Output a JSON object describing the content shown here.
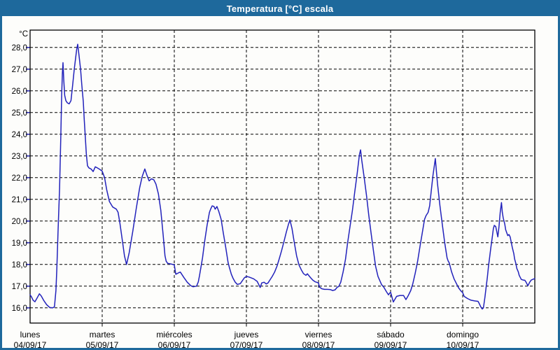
{
  "window": {
    "title": "Temperatura [°C] escala"
  },
  "colors": {
    "titlebar_bg": "#1e699c",
    "titlebar_text": "#ffffff",
    "window_border": "#1e699c",
    "plot_background": "#fdfdfb",
    "grid": "#000000",
    "series": "#2222bb"
  },
  "chart_data": {
    "type": "line",
    "title": "Temperatura [°C] escala",
    "grid": "dashed",
    "legend": "none",
    "y_axis": {
      "unit_label": "°C",
      "min": 16.0,
      "max": 28.0,
      "tick_step": 1.0,
      "display_min": 15.3,
      "display_max": 28.8,
      "ticks": [
        {
          "v": 28,
          "label": "28,0"
        },
        {
          "v": 27,
          "label": "27,0"
        },
        {
          "v": 26,
          "label": "26,0"
        },
        {
          "v": 25,
          "label": "25,0"
        },
        {
          "v": 24,
          "label": "24,0"
        },
        {
          "v": 23,
          "label": "23,0"
        },
        {
          "v": 22,
          "label": "22,0"
        },
        {
          "v": 21,
          "label": "21,0"
        },
        {
          "v": 20,
          "label": "20,0"
        },
        {
          "v": 19,
          "label": "19,0"
        },
        {
          "v": 18,
          "label": "18,0"
        },
        {
          "v": 17,
          "label": "17,0"
        },
        {
          "v": 16,
          "label": "16,0"
        }
      ]
    },
    "x_axis": {
      "hours_total": 168,
      "days": [
        {
          "name": "lunes",
          "date": "04/09/17"
        },
        {
          "name": "martes",
          "date": "05/09/17"
        },
        {
          "name": "miércoles",
          "date": "06/09/17"
        },
        {
          "name": "jueves",
          "date": "07/09/17"
        },
        {
          "name": "viernes",
          "date": "08/09/17"
        },
        {
          "name": "sábado",
          "date": "09/09/17"
        },
        {
          "name": "domingo",
          "date": "10/09/17"
        }
      ]
    },
    "series": [
      {
        "label": "Temperatura [°C]",
        "color": "#2222bb",
        "points": [
          [
            0,
            16.6
          ],
          [
            0.5,
            16.5
          ],
          [
            1.0,
            16.35
          ],
          [
            1.6,
            16.28
          ],
          [
            2.3,
            16.45
          ],
          [
            3.1,
            16.65
          ],
          [
            3.7,
            16.55
          ],
          [
            4.5,
            16.35
          ],
          [
            5.5,
            16.15
          ],
          [
            6.5,
            16.02
          ],
          [
            7.5,
            16.0
          ],
          [
            8.1,
            16.05
          ],
          [
            8.6,
            16.8
          ],
          [
            8.9,
            17.8
          ],
          [
            9.3,
            19.5
          ],
          [
            9.8,
            21.5
          ],
          [
            10.2,
            23.8
          ],
          [
            10.5,
            25.8
          ],
          [
            10.75,
            26.8
          ],
          [
            10.95,
            27.3
          ],
          [
            11.2,
            26.5
          ],
          [
            11.5,
            25.8
          ],
          [
            11.9,
            25.55
          ],
          [
            12.4,
            25.45
          ],
          [
            13.0,
            25.4
          ],
          [
            13.6,
            25.55
          ],
          [
            14.2,
            26.3
          ],
          [
            14.7,
            27.0
          ],
          [
            15.1,
            27.45
          ],
          [
            15.5,
            27.9
          ],
          [
            15.85,
            28.15
          ],
          [
            16.3,
            27.6
          ],
          [
            16.8,
            27.0
          ],
          [
            17.2,
            26.3
          ],
          [
            17.7,
            25.5
          ],
          [
            18.0,
            24.7
          ],
          [
            18.4,
            23.8
          ],
          [
            18.7,
            23.1
          ],
          [
            19.1,
            22.55
          ],
          [
            19.6,
            22.45
          ],
          [
            20.3,
            22.4
          ],
          [
            21.0,
            22.28
          ],
          [
            21.7,
            22.5
          ],
          [
            22.4,
            22.45
          ],
          [
            23.2,
            22.38
          ],
          [
            24.0,
            22.3
          ],
          [
            24.8,
            22.0
          ],
          [
            25.5,
            21.45
          ],
          [
            26.4,
            20.9
          ],
          [
            27.5,
            20.65
          ],
          [
            28.7,
            20.55
          ],
          [
            29.3,
            20.4
          ],
          [
            29.9,
            19.9
          ],
          [
            30.7,
            19.1
          ],
          [
            31.4,
            18.4
          ],
          [
            32.1,
            18.0
          ],
          [
            33.0,
            18.55
          ],
          [
            34.2,
            19.55
          ],
          [
            35.3,
            20.55
          ],
          [
            36.5,
            21.55
          ],
          [
            37.3,
            22.05
          ],
          [
            38.2,
            22.4
          ],
          [
            38.8,
            22.15
          ],
          [
            39.6,
            21.85
          ],
          [
            40.4,
            21.95
          ],
          [
            41.2,
            21.9
          ],
          [
            41.9,
            21.7
          ],
          [
            42.7,
            21.25
          ],
          [
            43.5,
            20.5
          ],
          [
            44.3,
            19.35
          ],
          [
            44.9,
            18.4
          ],
          [
            45.3,
            18.15
          ],
          [
            45.8,
            18.05
          ],
          [
            47.0,
            18.02
          ],
          [
            48.0,
            17.98
          ],
          [
            48.5,
            17.55
          ],
          [
            49.5,
            17.62
          ],
          [
            50.0,
            17.65
          ],
          [
            51.2,
            17.4
          ],
          [
            52.3,
            17.18
          ],
          [
            53.5,
            17.02
          ],
          [
            54.3,
            16.97
          ],
          [
            55.4,
            17.0
          ],
          [
            56.0,
            17.2
          ],
          [
            56.4,
            17.5
          ],
          [
            57.4,
            18.3
          ],
          [
            58.1,
            19.05
          ],
          [
            58.9,
            19.8
          ],
          [
            59.7,
            20.4
          ],
          [
            60.1,
            20.55
          ],
          [
            60.6,
            20.7
          ],
          [
            61.2,
            20.67
          ],
          [
            61.6,
            20.55
          ],
          [
            62.2,
            20.67
          ],
          [
            62.8,
            20.45
          ],
          [
            63.6,
            20.08
          ],
          [
            64.3,
            19.45
          ],
          [
            65.1,
            18.8
          ],
          [
            65.9,
            18.1
          ],
          [
            66.3,
            17.88
          ],
          [
            67.0,
            17.55
          ],
          [
            67.6,
            17.35
          ],
          [
            68.3,
            17.18
          ],
          [
            69.0,
            17.08
          ],
          [
            70.0,
            17.12
          ],
          [
            71.3,
            17.38
          ],
          [
            72.0,
            17.45
          ],
          [
            72.9,
            17.42
          ],
          [
            74.4,
            17.34
          ],
          [
            75.6,
            17.22
          ],
          [
            76.3,
            17.02
          ],
          [
            76.6,
            16.94
          ],
          [
            77.1,
            17.15
          ],
          [
            77.9,
            17.18
          ],
          [
            78.6,
            17.1
          ],
          [
            79.2,
            17.15
          ],
          [
            79.8,
            17.28
          ],
          [
            80.6,
            17.45
          ],
          [
            81.4,
            17.65
          ],
          [
            82.2,
            17.93
          ],
          [
            82.9,
            18.25
          ],
          [
            83.7,
            18.63
          ],
          [
            84.5,
            19.05
          ],
          [
            85.3,
            19.5
          ],
          [
            86.0,
            19.85
          ],
          [
            86.5,
            20.05
          ],
          [
            87.2,
            19.65
          ],
          [
            87.9,
            19.05
          ],
          [
            88.7,
            18.4
          ],
          [
            89.5,
            17.98
          ],
          [
            90.3,
            17.75
          ],
          [
            91.0,
            17.58
          ],
          [
            91.8,
            17.5
          ],
          [
            92.3,
            17.57
          ],
          [
            93.3,
            17.4
          ],
          [
            94.1,
            17.28
          ],
          [
            94.9,
            17.2
          ],
          [
            96.0,
            17.15
          ],
          [
            96.3,
            16.96
          ],
          [
            97.1,
            16.88
          ],
          [
            98.0,
            16.85
          ],
          [
            99.0,
            16.85
          ],
          [
            100.0,
            16.84
          ],
          [
            100.7,
            16.8
          ],
          [
            101.5,
            16.83
          ],
          [
            102.3,
            16.96
          ],
          [
            102.7,
            16.98
          ],
          [
            103.4,
            17.18
          ],
          [
            104.2,
            17.66
          ],
          [
            105.0,
            18.25
          ],
          [
            105.7,
            19.0
          ],
          [
            106.5,
            19.76
          ],
          [
            107.3,
            20.5
          ],
          [
            108.1,
            21.37
          ],
          [
            108.9,
            22.23
          ],
          [
            109.6,
            23.05
          ],
          [
            110.0,
            23.28
          ],
          [
            110.4,
            22.8
          ],
          [
            111.2,
            22.02
          ],
          [
            112.0,
            21.15
          ],
          [
            112.7,
            20.3
          ],
          [
            113.5,
            19.45
          ],
          [
            114.3,
            18.63
          ],
          [
            115.0,
            17.93
          ],
          [
            115.8,
            17.45
          ],
          [
            117.0,
            17.07
          ],
          [
            117.8,
            16.94
          ],
          [
            118.6,
            16.75
          ],
          [
            119.3,
            16.6
          ],
          [
            119.7,
            16.68
          ],
          [
            120.0,
            16.72
          ],
          [
            120.9,
            16.27
          ],
          [
            122.0,
            16.53
          ],
          [
            123.1,
            16.57
          ],
          [
            124.3,
            16.57
          ],
          [
            125.1,
            16.38
          ],
          [
            125.9,
            16.57
          ],
          [
            126.7,
            16.8
          ],
          [
            127.4,
            17.12
          ],
          [
            128.2,
            17.6
          ],
          [
            129.0,
            18.15
          ],
          [
            129.8,
            18.85
          ],
          [
            130.6,
            19.5
          ],
          [
            131.3,
            20.08
          ],
          [
            131.8,
            20.25
          ],
          [
            132.5,
            20.4
          ],
          [
            133.0,
            20.7
          ],
          [
            133.3,
            21.1
          ],
          [
            134.1,
            22.1
          ],
          [
            134.6,
            22.6
          ],
          [
            134.9,
            22.88
          ],
          [
            135.3,
            22.2
          ],
          [
            135.6,
            21.75
          ],
          [
            136.4,
            20.73
          ],
          [
            137.2,
            19.86
          ],
          [
            138.0,
            19.0
          ],
          [
            138.8,
            18.3
          ],
          [
            139.2,
            18.15
          ],
          [
            139.5,
            18.08
          ],
          [
            140.3,
            17.66
          ],
          [
            141.1,
            17.34
          ],
          [
            141.9,
            17.12
          ],
          [
            142.6,
            16.93
          ],
          [
            143.4,
            16.78
          ],
          [
            144.0,
            16.7
          ],
          [
            144.5,
            16.53
          ],
          [
            145.6,
            16.43
          ],
          [
            146.8,
            16.35
          ],
          [
            148.0,
            16.32
          ],
          [
            149.1,
            16.3
          ],
          [
            149.5,
            16.2
          ],
          [
            150.0,
            16.05
          ],
          [
            150.5,
            15.95
          ],
          [
            150.9,
            16.0
          ],
          [
            151.4,
            16.5
          ],
          [
            151.8,
            16.96
          ],
          [
            152.2,
            17.4
          ],
          [
            152.6,
            17.93
          ],
          [
            153.0,
            18.36
          ],
          [
            153.4,
            18.8
          ],
          [
            153.8,
            19.22
          ],
          [
            154.2,
            19.65
          ],
          [
            154.5,
            19.8
          ],
          [
            155.0,
            19.75
          ],
          [
            155.3,
            19.54
          ],
          [
            155.7,
            19.27
          ],
          [
            156.1,
            19.76
          ],
          [
            156.5,
            20.4
          ],
          [
            156.9,
            20.85
          ],
          [
            157.2,
            20.4
          ],
          [
            157.5,
            20.14
          ],
          [
            158.0,
            19.86
          ],
          [
            158.3,
            19.6
          ],
          [
            159.0,
            19.33
          ],
          [
            159.4,
            19.38
          ],
          [
            159.8,
            19.27
          ],
          [
            160.1,
            19.06
          ],
          [
            160.5,
            18.79
          ],
          [
            161.0,
            18.5
          ],
          [
            161.3,
            18.25
          ],
          [
            161.7,
            18.04
          ],
          [
            162.0,
            17.82
          ],
          [
            162.5,
            17.66
          ],
          [
            162.8,
            17.5
          ],
          [
            163.5,
            17.31
          ],
          [
            164.2,
            17.28
          ],
          [
            164.7,
            17.27
          ],
          [
            165.1,
            17.18
          ],
          [
            165.7,
            17.02
          ],
          [
            166.3,
            17.18
          ],
          [
            166.8,
            17.28
          ],
          [
            168.0,
            17.35
          ]
        ]
      }
    ]
  }
}
